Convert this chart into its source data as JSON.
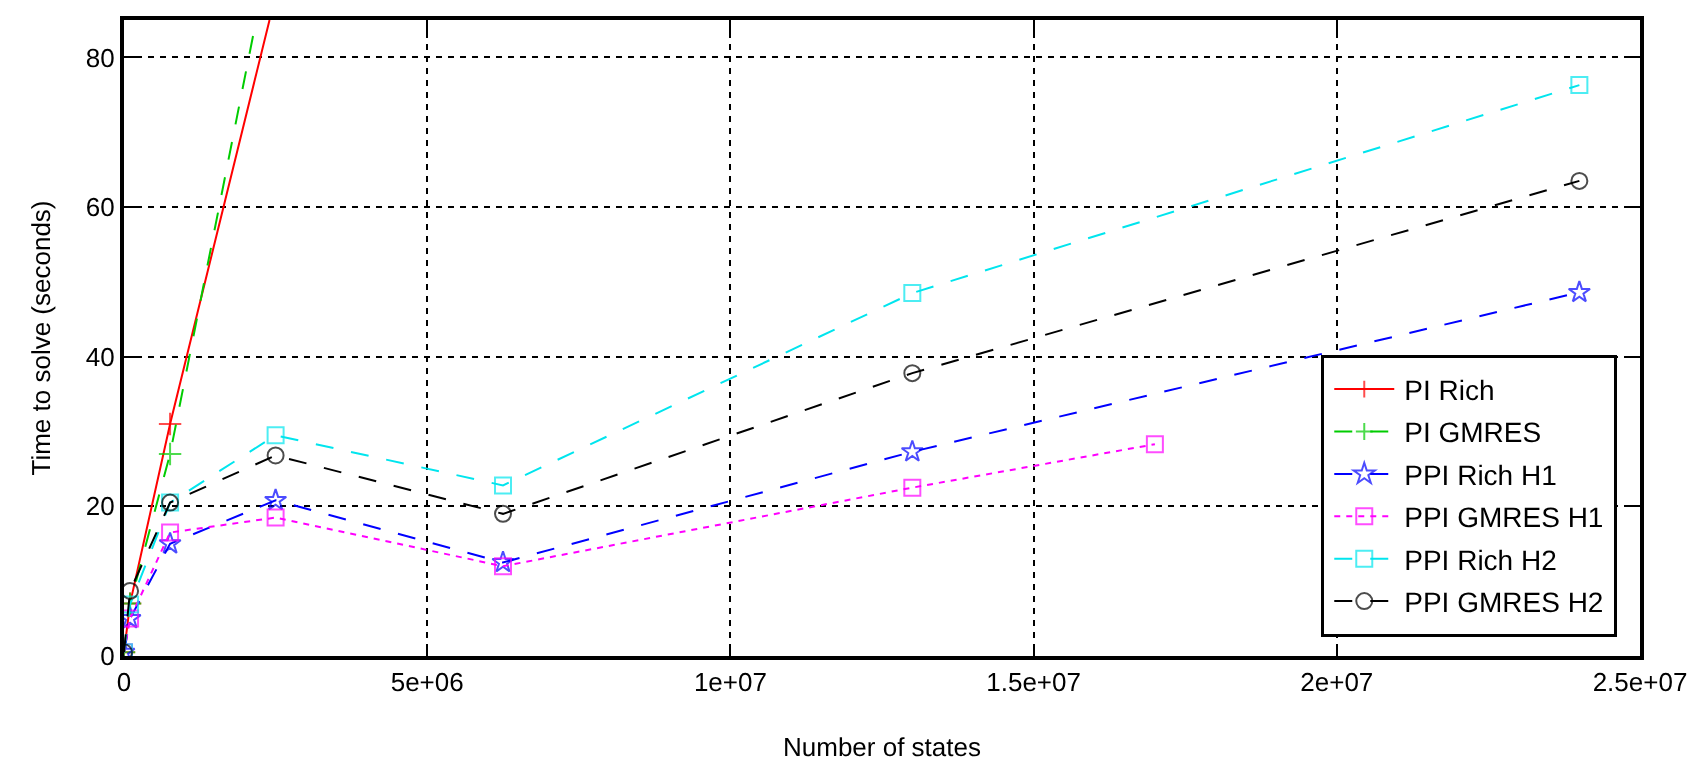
{
  "chart_data": {
    "type": "line",
    "xlabel": "Number of states",
    "ylabel": "Time to solve (seconds)",
    "xlim": [
      0,
      25000000
    ],
    "xticks": [
      0,
      {
        "value": 5000000,
        "label": "5e+06"
      },
      {
        "value": 10000000,
        "label": "1e+07"
      },
      {
        "value": 15000000,
        "label": "1.5e+07"
      },
      {
        "value": 20000000,
        "label": "2e+07"
      },
      {
        "value": 25000000,
        "label": "2.5e+07"
      }
    ],
    "ylim": [
      0,
      85
    ],
    "yticks": [
      0,
      20,
      40,
      60,
      80
    ],
    "grid": true,
    "legend": "bottom right",
    "series": [
      {
        "name": "PI Rich",
        "color": "#ff0000",
        "line_style": "solid",
        "marker": "cross",
        "x": [
          0,
          100000,
          760000,
          2400000
        ],
        "values": [
          0.5,
          7,
          31,
          85
        ]
      },
      {
        "name": "PI GMRES",
        "color": "#00cc00",
        "line_style": "dashed",
        "marker": "cross",
        "x": [
          0,
          100000,
          760000,
          2180000
        ],
        "values": [
          0.5,
          7,
          27,
          85
        ]
      },
      {
        "name": "PPI Rich H1",
        "color": "#0000ff",
        "line_style": "dashed",
        "marker": "star",
        "x": [
          0,
          100000,
          760000,
          2500000,
          6250000,
          13000000,
          24000000
        ],
        "values": [
          0.5,
          5,
          15,
          20.8,
          12.5,
          27.3,
          48.6
        ]
      },
      {
        "name": "PPI GMRES H1",
        "color": "#ff00ff",
        "line_style": "dotted",
        "marker": "square",
        "x": [
          0,
          100000,
          760000,
          2500000,
          6250000,
          13000000,
          17000000
        ],
        "values": [
          0.5,
          5,
          16.5,
          18.5,
          12,
          22.5,
          28.3
        ]
      },
      {
        "name": "PPI Rich H2",
        "color": "#00e5ee",
        "line_style": "dashed",
        "marker": "square",
        "x": [
          0,
          100000,
          760000,
          2500000,
          6250000,
          13000000,
          24000000
        ],
        "values": [
          0.5,
          6.9,
          20.5,
          29.5,
          22.8,
          48.5,
          76.3
        ]
      },
      {
        "name": "PPI GMRES H2",
        "color": "#000000",
        "line_style": "dashed",
        "marker": "circle",
        "x": [
          0,
          100000,
          760000,
          2500000,
          6250000,
          13000000,
          24000000
        ],
        "values": [
          0.5,
          8.7,
          20.5,
          26.8,
          19,
          37.8,
          63.5
        ]
      }
    ]
  }
}
